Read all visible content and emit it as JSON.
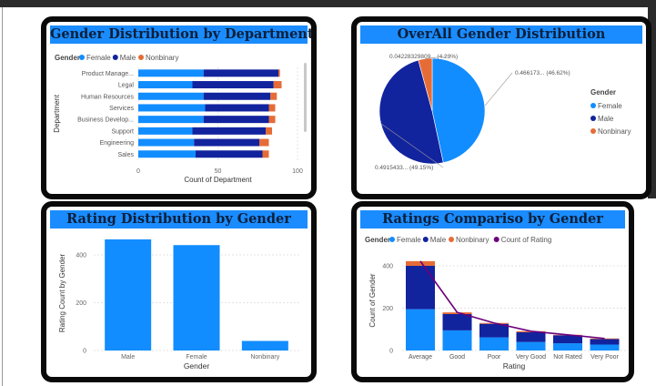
{
  "colors": {
    "female": "#118dff",
    "male": "#12239e",
    "nonbinary": "#e66c37",
    "count_line": "#6b007b",
    "title_bg": "#1a8cff",
    "title_text": "#0b1f3a"
  },
  "charts": [
    {
      "id": "dept",
      "title": "Gender Distribution by Department",
      "legend_title": "Gender",
      "legend": [
        "Female",
        "Male",
        "Nonbinary"
      ],
      "xlabel": "Count of Department",
      "ylabel": "Department",
      "xticks": [
        "0",
        "50",
        "100"
      ],
      "categories": [
        "Product Manage...",
        "Legal",
        "Human Resources",
        "Services",
        "Business Develop...",
        "Support",
        "Engineering",
        "Sales"
      ]
    },
    {
      "id": "overall",
      "title": "OverAll Gender Distribution",
      "legend_title": "Gender",
      "legend": [
        "Female",
        "Male",
        "Nonbinary"
      ],
      "slice_labels": [
        "0.466173... (46.62%)",
        "0.4915433... (49.15%)",
        "0.04228329809... (4.23%)"
      ]
    },
    {
      "id": "rating",
      "title": "Rating Distribution by Gender",
      "xlabel": "Gender",
      "ylabel": "Rating Count by Gender",
      "yticks": [
        "0",
        "200",
        "400"
      ],
      "categories": [
        "Male",
        "Female",
        "Nonbinary"
      ]
    },
    {
      "id": "compare",
      "title": "Ratings Compariso by Gender",
      "legend_title": "Gender",
      "legend": [
        "Female",
        "Male",
        "Nonbinary",
        "Count of Rating"
      ],
      "xlabel": "Rating",
      "ylabel": "Count of Gender",
      "yticks": [
        "0",
        "200",
        "400"
      ],
      "categories": [
        "Average",
        "Good",
        "Poor",
        "Very Good",
        "Not Rated",
        "Very Poor"
      ]
    }
  ],
  "chart_data": [
    {
      "type": "bar",
      "orientation": "horizontal",
      "stacked": true,
      "title": "Gender Distribution by Department",
      "xlabel": "Count of Department",
      "ylabel": "Department",
      "xlim": [
        0,
        100
      ],
      "categories": [
        "Product Manage...",
        "Legal",
        "Human Resources",
        "Services",
        "Business Develop...",
        "Support",
        "Engineering",
        "Sales"
      ],
      "series": [
        {
          "name": "Female",
          "values": [
            41,
            34,
            41,
            42,
            41,
            34,
            35,
            36
          ]
        },
        {
          "name": "Male",
          "values": [
            47,
            51,
            42,
            40,
            41,
            46,
            41,
            42
          ]
        },
        {
          "name": "Nonbinary",
          "values": [
            1,
            5,
            4,
            4,
            4,
            4,
            6,
            4
          ]
        }
      ]
    },
    {
      "type": "pie",
      "title": "OverAll Gender Distribution",
      "legend_position": "right",
      "categories": [
        "Female",
        "Male",
        "Nonbinary"
      ],
      "values": [
        0.466173,
        0.4915433,
        0.04228329809
      ]
    },
    {
      "type": "bar",
      "title": "Rating Distribution by Gender",
      "xlabel": "Gender",
      "ylabel": "Rating Count by Gender",
      "ylim": [
        0,
        480
      ],
      "categories": [
        "Male",
        "Female",
        "Nonbinary"
      ],
      "values": [
        465,
        441,
        40
      ]
    },
    {
      "type": "bar",
      "stacked": true,
      "title": "Ratings Compariso by Gender",
      "xlabel": "Rating",
      "ylabel": "Count of Gender",
      "ylim": [
        0,
        430
      ],
      "categories": [
        "Average",
        "Good",
        "Poor",
        "Very Good",
        "Not Rated",
        "Very Poor"
      ],
      "series": [
        {
          "name": "Female",
          "values": [
            195,
            95,
            62,
            40,
            34,
            28
          ]
        },
        {
          "name": "Male",
          "values": [
            205,
            77,
            64,
            46,
            38,
            26
          ]
        },
        {
          "name": "Nonbinary",
          "values": [
            22,
            8,
            4,
            5,
            2,
            3
          ]
        },
        {
          "name": "Count of Rating",
          "kind": "line",
          "values": [
            422,
            180,
            130,
            91,
            74,
            57
          ]
        }
      ]
    }
  ]
}
